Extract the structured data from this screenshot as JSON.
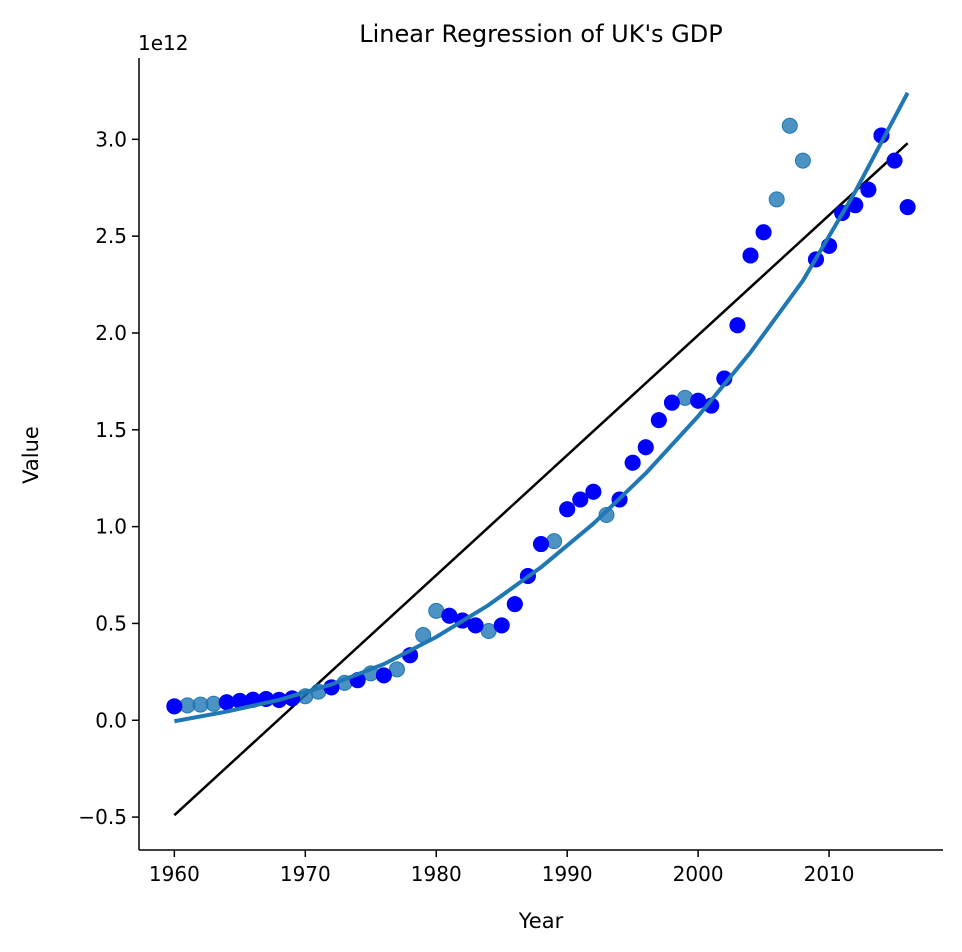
{
  "chart_data": {
    "type": "scatter",
    "title": "Linear Regression of UK's GDP",
    "xlabel": "Year",
    "ylabel": "Value",
    "offset_label": "1e12",
    "xlim": [
      1957.3,
      2018.7
    ],
    "ylim": [
      -0.67,
      3.42
    ],
    "x_ticks": [
      1960,
      1970,
      1980,
      1990,
      2000,
      2010
    ],
    "y_ticks": [
      -0.5,
      0.0,
      0.5,
      1.0,
      1.5,
      2.0,
      2.5,
      3.0
    ],
    "x_tick_labels": [
      "1960",
      "1970",
      "1980",
      "1990",
      "2000",
      "2010"
    ],
    "y_tick_labels": [
      "−0.5",
      "0.0",
      "0.5",
      "1.0",
      "1.5",
      "2.0",
      "2.5",
      "3.0"
    ],
    "colors": {
      "scatter_dark": "#0000ff",
      "scatter_light": "#1f77b4",
      "linear_fit": "#000000",
      "poly_fit": "#1f77b4"
    },
    "scatter_light": {
      "x": [
        1960,
        1961,
        1962,
        1963,
        1964,
        1965,
        1966,
        1967,
        1968,
        1969,
        1970,
        1971,
        1972,
        1973,
        1974,
        1975,
        1976,
        1977,
        1978,
        1979,
        1980,
        1981,
        1982,
        1983,
        1984,
        1985,
        1986,
        1987,
        1988,
        1989,
        1990,
        1991,
        1992,
        1993,
        1994,
        1995,
        1996,
        1997,
        1998,
        1999,
        2000,
        2001,
        2002,
        2003,
        2004,
        2005,
        2006,
        2007,
        2008,
        2009,
        2010,
        2011,
        2012,
        2013,
        2014,
        2015,
        2016
      ],
      "y": [
        0.072,
        0.077,
        0.081,
        0.085,
        0.093,
        0.1,
        0.106,
        0.11,
        0.105,
        0.113,
        0.124,
        0.148,
        0.17,
        0.193,
        0.207,
        0.242,
        0.232,
        0.263,
        0.336,
        0.44,
        0.565,
        0.54,
        0.515,
        0.49,
        0.461,
        0.49,
        0.6,
        0.745,
        0.91,
        0.925,
        1.09,
        1.14,
        1.18,
        1.06,
        1.14,
        1.33,
        1.41,
        1.55,
        1.64,
        1.665,
        1.65,
        1.625,
        1.765,
        2.04,
        2.4,
        2.52,
        2.69,
        3.07,
        2.89,
        2.38,
        2.45,
        2.62,
        2.66,
        2.74,
        3.02,
        2.89,
        2.65
      ]
    },
    "scatter_dark": {
      "x": [
        1960,
        1964,
        1965,
        1966,
        1967,
        1968,
        1969,
        1972,
        1974,
        1976,
        1978,
        1981,
        1982,
        1983,
        1985,
        1986,
        1987,
        1988,
        1990,
        1991,
        1992,
        1994,
        1995,
        1996,
        1997,
        1998,
        2000,
        2001,
        2002,
        2003,
        2004,
        2005,
        2009,
        2010,
        2011,
        2012,
        2013,
        2014,
        2015,
        2016
      ],
      "y": [
        0.072,
        0.093,
        0.1,
        0.106,
        0.11,
        0.105,
        0.113,
        0.17,
        0.207,
        0.232,
        0.336,
        0.54,
        0.515,
        0.49,
        0.49,
        0.6,
        0.745,
        0.91,
        1.09,
        1.14,
        1.18,
        1.14,
        1.33,
        1.41,
        1.55,
        1.64,
        1.65,
        1.625,
        1.765,
        2.04,
        2.4,
        2.52,
        2.38,
        2.45,
        2.62,
        2.66,
        2.74,
        3.02,
        2.89,
        2.65
      ]
    },
    "linear_fit": {
      "x": [
        1960,
        2016
      ],
      "y": [
        -0.49,
        2.98
      ]
    },
    "poly_fit": {
      "x": [
        1960,
        1964,
        1968,
        1972,
        1976,
        1980,
        1984,
        1988,
        1992,
        1996,
        2000,
        2004,
        2008,
        2012,
        2016
      ],
      "y": [
        -0.005,
        0.045,
        0.105,
        0.185,
        0.29,
        0.43,
        0.595,
        0.79,
        1.015,
        1.275,
        1.57,
        1.9,
        2.27,
        2.73,
        3.24
      ]
    }
  }
}
